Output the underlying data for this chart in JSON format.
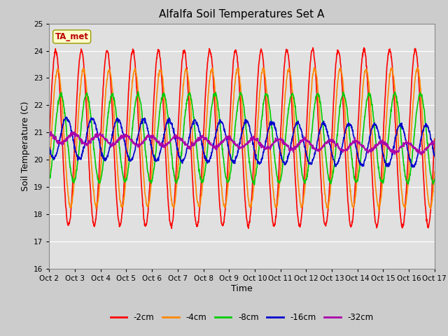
{
  "title": "Alfalfa Soil Temperatures Set A",
  "xlabel": "Time",
  "ylabel": "Soil Temperature (C)",
  "ylim": [
    16.0,
    25.0
  ],
  "yticks": [
    16.0,
    17.0,
    18.0,
    19.0,
    20.0,
    21.0,
    22.0,
    23.0,
    24.0,
    25.0
  ],
  "xtick_labels": [
    "Oct 2",
    "Oct 3",
    "Oct 4",
    "Oct 5",
    "Oct 6",
    "Oct 7",
    "Oct 8",
    "Oct 9",
    "Oct 10",
    "Oct 11",
    "Oct 12",
    "Oct 13",
    "Oct 14",
    "Oct 15",
    "Oct 16",
    "Oct 17"
  ],
  "n_days": 15,
  "annotation_text": "TA_met",
  "annotation_color": "#bb0000",
  "annotation_bg": "#ffffcc",
  "annotation_edge": "#999900",
  "line_colors": {
    "-2cm": "#ff0000",
    "-4cm": "#ff8800",
    "-8cm": "#00cc00",
    "-16cm": "#0000cc",
    "-32cm": "#aa00aa"
  },
  "background_color": "#cccccc",
  "plot_bg": "#e0e0e0",
  "periods_per_day": 96,
  "base_temp": 20.8,
  "amplitudes": {
    "-2cm": 3.2,
    "-4cm": 2.5,
    "-8cm": 1.6,
    "-16cm": 0.75,
    "-32cm": 0.18
  },
  "phase_shifts_frac": {
    "-2cm": 0.0,
    "-4cm": 0.08,
    "-8cm": 0.2,
    "-16cm": 0.42,
    "-32cm": 0.7
  },
  "amplitude_growth": {
    "-2cm": 0.055,
    "-4cm": 0.045,
    "-8cm": 0.025,
    "-16cm": 0.01,
    "-32cm": 0.002
  },
  "mean_drift": {
    "-2cm": 0.0,
    "-4cm": 0.0,
    "-8cm": 0.0,
    "-16cm": -0.02,
    "-32cm": -0.025
  }
}
